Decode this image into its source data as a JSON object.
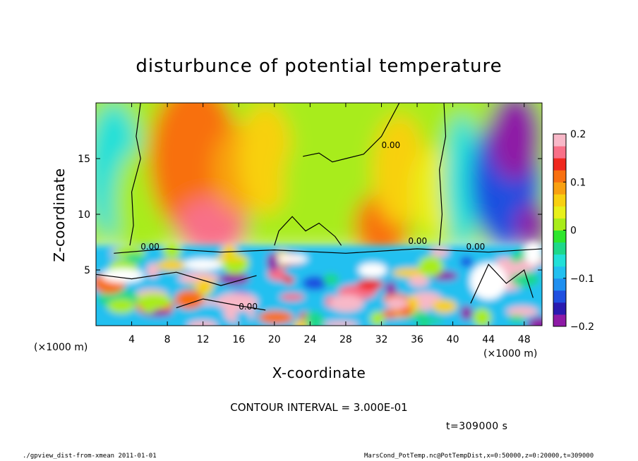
{
  "chart_data": {
    "type": "heatmap",
    "title": "disturbunce of potential temperature",
    "xlabel": "X-coordinate",
    "ylabel": "Z-coordinate",
    "x_unit": "(×1000 m)",
    "y_unit": "(×1000 m)",
    "xlim": [
      0,
      50
    ],
    "ylim": [
      0,
      20
    ],
    "x_ticks": [
      4,
      8,
      12,
      16,
      20,
      24,
      28,
      32,
      36,
      40,
      44,
      48
    ],
    "y_ticks": [
      5,
      10,
      15
    ],
    "colorbar": {
      "range": [
        -0.2,
        0.2
      ],
      "tick_values": [
        0.2,
        0.1,
        0,
        -0.1,
        -0.2
      ],
      "tick_labels": [
        "0.2",
        "0.1",
        "0",
        "−0.1",
        "−0.2"
      ],
      "colors": [
        "#8e1aa6",
        "#2a1ab0",
        "#1f4fe0",
        "#1f8ff0",
        "#22c0f0",
        "#22e0d8",
        "#1ed88a",
        "#2ee62e",
        "#a8ec1a",
        "#e8f01a",
        "#f8d010",
        "#f8a010",
        "#f87010",
        "#f0281e",
        "#f87088",
        "#f8b8c8"
      ]
    },
    "contour_interval_text": "CONTOUR INTERVAL = 3.000E-01",
    "contour_labels": [
      "0.00",
      "0.00",
      "0.00",
      "0.00",
      "0.00"
    ],
    "time_text": "t=309000 s",
    "field_summary": [
      {
        "region": "upper left",
        "x": [
          8,
          16
        ],
        "z": [
          9,
          20
        ],
        "value": 0.12
      },
      {
        "region": "upper center",
        "x": [
          20,
          32
        ],
        "z": [
          8,
          20
        ],
        "value": 0.02
      },
      {
        "region": "upper right",
        "x": [
          42,
          50
        ],
        "z": [
          8,
          20
        ],
        "value": -0.17
      },
      {
        "region": "lower layer",
        "x": [
          0,
          50
        ],
        "z": [
          0,
          7
        ],
        "value": "mixed, ranges -0.2 to 0.2"
      }
    ]
  },
  "footer": {
    "left": "./gpview_dist-from-xmean  2011-01-01",
    "right": "MarsCond_PotTemp.nc@PotTempDist,x=0:50000,z=0:20000,t=309000"
  }
}
